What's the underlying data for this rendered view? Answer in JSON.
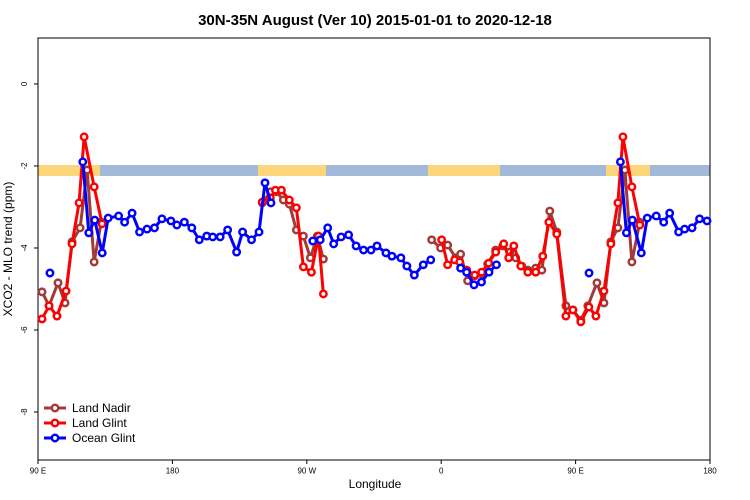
{
  "chart_data": {
    "type": "line",
    "title": "30N-35N August (Ver 10)   2015-01-01 to 2020-12-18",
    "x_label": "Longitude",
    "y_label": "XCO2 - MLO trend (ppm)",
    "xlim": [
      90,
      540
    ],
    "ylim": [
      -9.17,
      1.12
    ],
    "xticks": [
      {
        "value": 90,
        "label": "90 E"
      },
      180,
      {
        "value": 270,
        "label": "90 W"
      },
      {
        "value": 360,
        "label": "0"
      },
      {
        "value": 450,
        "label": "90 E"
      },
      {
        "value": 540,
        "label": "180"
      }
    ],
    "yticks": [
      0,
      -2,
      -4,
      -6,
      -8
    ],
    "legend": "lower left",
    "series": [
      {
        "name": "Land Nadir",
        "color": "#a23a3a",
        "x": [
          92.7,
          97.4,
          103.4,
          108.1,
          112.8,
          118.2,
          122.9,
          127.6,
          132.3,
          null,
          240.2,
          245.6,
          249.6,
          254.3,
          258.3,
          263,
          267.7,
          272.4,
          277.1,
          281.1,
          null,
          353.6,
          359.6,
          364.3,
          369.7,
          373,
          377.7,
          382.4,
          387.1,
          391.1,
          396.5,
          401.2,
          405.9,
          409.9,
          413.9,
          418,
          423.3,
          427.4,
          432.7,
          437.4,
          443.5,
          448.2,
          453.5,
          458.2,
          464.3,
          469,
          473.6,
          478.3,
          483,
          487.7,
          493
        ],
        "values": [
          -5.07,
          -5.41,
          -4.85,
          -5.34,
          -3.85,
          -3.51,
          -2.1,
          -4.34,
          -3.37,
          null,
          -2.9,
          -2.63,
          -2.63,
          -2.83,
          -2.93,
          -3.56,
          -3.71,
          -4.24,
          -3.71,
          -4.27,
          null,
          -3.8,
          -4.0,
          -3.93,
          -4.24,
          -4.15,
          -4.8,
          -4.68,
          -4.63,
          -4.39,
          -4.05,
          -3.95,
          -4.1,
          -4.24,
          -4.44,
          -4.54,
          -4.49,
          -4.54,
          -3.1,
          -3.61,
          -5.41,
          -5.51,
          -5.76,
          -5.41,
          -4.85,
          -5.34,
          -3.85,
          -3.51,
          -2.1,
          -4.34,
          -3.37
        ]
      },
      {
        "name": "Land Glint",
        "color": "#ff0000",
        "x": [
          92.7,
          97.4,
          102.7,
          108.8,
          112.8,
          117.5,
          120.9,
          127.6,
          132.9,
          null,
          240.2,
          245.6,
          249,
          253,
          258.3,
          263,
          267.7,
          273.1,
          277.8,
          281.1,
          null,
          360.3,
          364.3,
          369,
          372.4,
          377.1,
          382.4,
          387.1,
          391.8,
          396.5,
          401.9,
          405.2,
          408.6,
          413.3,
          418,
          423.3,
          428,
          432.1,
          437.4,
          443.5,
          448.2,
          453.5,
          458.9,
          463.6,
          469,
          473.6,
          478.3,
          481.7,
          487.7,
          493
        ],
        "values": [
          -5.73,
          -5.41,
          -5.66,
          -5.05,
          -3.9,
          -2.9,
          -1.29,
          -2.51,
          -3.41,
          null,
          -2.88,
          -2.78,
          -2.59,
          -2.59,
          -2.83,
          -3.02,
          -4.46,
          -4.59,
          -3.71,
          -5.12,
          null,
          -3.8,
          -4.41,
          -4.29,
          -4.34,
          -4.54,
          -4.66,
          -4.59,
          -4.37,
          -4.1,
          -3.9,
          -4.24,
          -3.95,
          -4.44,
          -4.59,
          -4.59,
          -4.2,
          -3.37,
          -3.66,
          -5.66,
          -5.51,
          -5.8,
          -5.44,
          -5.66,
          -5.05,
          -3.9,
          -2.9,
          -1.29,
          -2.51,
          -3.44
        ]
      },
      {
        "name": "Ocean Glint",
        "color": "#0000ff",
        "x": [
          98,
          null,
          120,
          124,
          128,
          133,
          137,
          144,
          148,
          153,
          158,
          163,
          168,
          173,
          179,
          183,
          188,
          193,
          198,
          203,
          207,
          212,
          217,
          223,
          227,
          233,
          238,
          242,
          246,
          null,
          274,
          279,
          284,
          288,
          293,
          298,
          303,
          308,
          313,
          317,
          323,
          327,
          333,
          337,
          342,
          348,
          353,
          null,
          373,
          377,
          382,
          387,
          392,
          397,
          null,
          459,
          null,
          480,
          484,
          488,
          494,
          498,
          504,
          509,
          513,
          519,
          523,
          528,
          533,
          538
        ],
        "values": [
          -4.61,
          null,
          -1.9,
          -3.63,
          -3.32,
          -4.12,
          -3.27,
          -3.22,
          -3.37,
          -3.15,
          -3.61,
          -3.54,
          -3.51,
          -3.29,
          -3.34,
          -3.44,
          -3.37,
          -3.51,
          -3.8,
          -3.71,
          -3.73,
          -3.73,
          -3.56,
          -4.1,
          -3.61,
          -3.8,
          -3.61,
          -2.41,
          -2.9,
          null,
          -3.83,
          -3.8,
          -3.51,
          -3.9,
          -3.73,
          -3.68,
          -3.95,
          -4.05,
          -4.05,
          -3.95,
          -4.12,
          -4.2,
          -4.24,
          -4.44,
          -4.66,
          -4.41,
          -4.29,
          null,
          -4.49,
          -4.59,
          -4.9,
          -4.83,
          -4.59,
          -4.41,
          null,
          -4.61,
          null,
          -1.9,
          -3.63,
          -3.32,
          -4.12,
          -3.27,
          -3.22,
          -3.37,
          -3.15,
          -3.61,
          -3.54,
          -3.51,
          -3.29,
          -3.34
        ]
      }
    ]
  }
}
